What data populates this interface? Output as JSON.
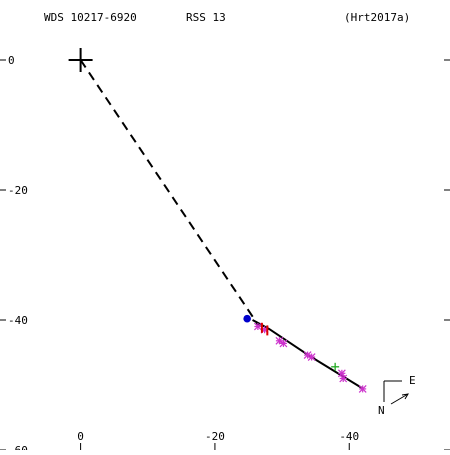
{
  "header": {
    "designation": "WDS 10217-6920",
    "rss": "RSS  13",
    "reference": "(Hrt2017a)"
  },
  "compass": {
    "east_label": "E",
    "north_label": "N"
  },
  "chart_data": {
    "type": "scatter",
    "title": "",
    "xlabel": "",
    "ylabel": "",
    "xlim": [
      12,
      -55
    ],
    "ylim": [
      -60,
      8
    ],
    "x_reversed": true,
    "grid": false,
    "x_ticks": [
      {
        "value": -40,
        "label": "-40"
      },
      {
        "value": -20,
        "label": "-20"
      },
      {
        "value": 0,
        "label": "0"
      }
    ],
    "y_ticks": [
      {
        "value": 0,
        "label": "0"
      },
      {
        "value": -20,
        "label": "-20"
      },
      {
        "value": -40,
        "label": "-40"
      },
      {
        "value": -60,
        "label": "-60"
      }
    ],
    "primary_star": {
      "x": 0,
      "y": 0,
      "marker": "plus",
      "color": "#000000"
    },
    "orbit_path": {
      "style": "solid",
      "color": "#000000",
      "points": [
        [
          -25.6,
          -40.0
        ],
        [
          -28.1,
          -41.4
        ],
        [
          -34.2,
          -45.6
        ],
        [
          -42.1,
          -50.6
        ]
      ]
    },
    "connector": {
      "style": "dashed",
      "color": "#000000",
      "points": [
        [
          0,
          0
        ],
        [
          -26.6,
          -41.0
        ]
      ]
    },
    "observations": [
      {
        "x": -42.0,
        "y": -50.6,
        "marker": "asterisk",
        "color": "#cc33cc"
      },
      {
        "x": -39.1,
        "y": -49.0,
        "marker": "asterisk",
        "color": "#cc33cc"
      },
      {
        "x": -38.9,
        "y": -48.2,
        "marker": "asterisk",
        "color": "#cc33cc"
      },
      {
        "x": -34.4,
        "y": -45.7,
        "marker": "asterisk",
        "color": "#cc33cc"
      },
      {
        "x": -33.8,
        "y": -45.4,
        "marker": "asterisk",
        "color": "#cc33cc"
      },
      {
        "x": -30.2,
        "y": -43.6,
        "marker": "asterisk",
        "color": "#cc33cc"
      },
      {
        "x": -29.6,
        "y": -43.2,
        "marker": "asterisk",
        "color": "#cc33cc"
      },
      {
        "x": -27.4,
        "y": -41.5,
        "marker": "asterisk",
        "color": "#cc33cc"
      },
      {
        "x": -26.4,
        "y": -41.0,
        "marker": "asterisk",
        "color": "#cc33cc"
      },
      {
        "x": -37.9,
        "y": -47.2,
        "marker": "plus",
        "color": "#22aa22"
      },
      {
        "x": -27.0,
        "y": -41.2,
        "marker": "tick",
        "color": "#dd0000"
      },
      {
        "x": -27.8,
        "y": -41.6,
        "marker": "tick",
        "color": "#dd0000"
      },
      {
        "x": -24.8,
        "y": -39.8,
        "marker": "dot",
        "color": "#0000cc"
      }
    ]
  }
}
